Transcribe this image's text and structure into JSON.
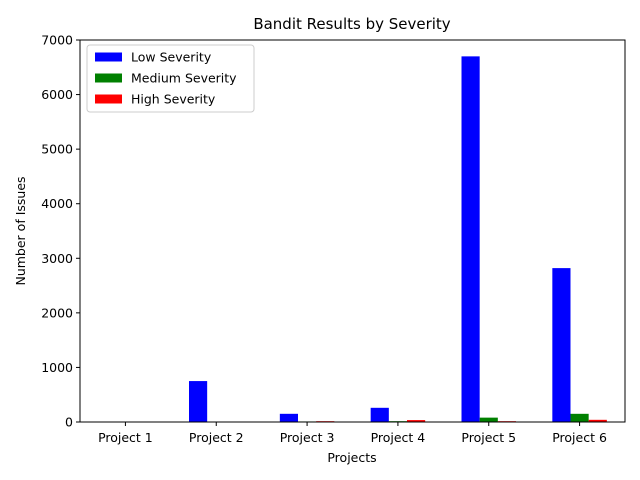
{
  "chart_data": {
    "type": "bar",
    "title": "Bandit Results by Severity",
    "xlabel": "Projects",
    "ylabel": "Number of Issues",
    "categories": [
      "Project 1",
      "Project 2",
      "Project 3",
      "Project 4",
      "Project 5",
      "Project 6"
    ],
    "series": [
      {
        "name": "Low Severity",
        "color": "#0000ff",
        "values": [
          0,
          750,
          150,
          260,
          6700,
          2820
        ]
      },
      {
        "name": "Medium Severity",
        "color": "#008000",
        "values": [
          0,
          0,
          10,
          15,
          80,
          150
        ]
      },
      {
        "name": "High Severity",
        "color": "#ff0000",
        "values": [
          0,
          0,
          15,
          35,
          15,
          40
        ]
      }
    ],
    "ylim": [
      0,
      7000
    ],
    "yticks": [
      0,
      1000,
      2000,
      3000,
      4000,
      5000,
      6000,
      7000
    ],
    "grid": false,
    "legend_position": "upper-left"
  }
}
